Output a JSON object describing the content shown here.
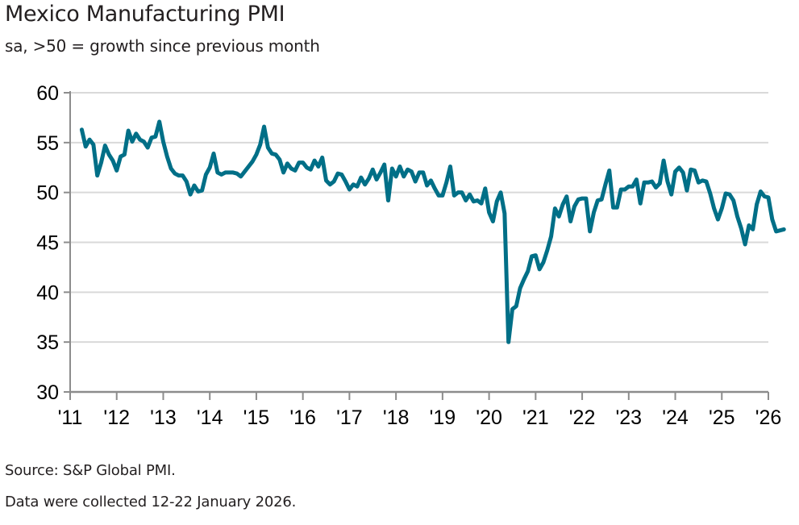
{
  "chart_data": {
    "type": "line",
    "title": "Mexico Manufacturing PMI",
    "subtitle": "sa, >50 = growth since previous month",
    "xlabel": "",
    "ylabel": "",
    "ylim": [
      30,
      60
    ],
    "yticks": [
      60,
      55,
      50,
      45,
      40,
      35,
      30
    ],
    "xlim": [
      "2011-01",
      "2026-01"
    ],
    "xticks": [
      "'11",
      "'12",
      "'13",
      "'14",
      "'15",
      "'16",
      "'17",
      "'18",
      "'19",
      "'20",
      "'21",
      "'22",
      "'23",
      "'24",
      "'25",
      "'26"
    ],
    "grid": "horizontal",
    "legend": "none",
    "series": [
      {
        "name": "Mexico Manufacturing PMI",
        "color": "#006f87",
        "start": "2011-04",
        "frequency": "monthly",
        "values": [
          56.3,
          54.6,
          55.3,
          54.8,
          51.7,
          53.0,
          54.7,
          53.8,
          53.2,
          52.2,
          53.6,
          53.8,
          56.2,
          55.1,
          55.9,
          55.3,
          55.1,
          54.5,
          55.5,
          55.6,
          57.1,
          55.1,
          53.6,
          52.4,
          51.9,
          51.7,
          51.7,
          51.1,
          49.8,
          50.7,
          50.1,
          50.2,
          51.8,
          52.5,
          53.9,
          52.0,
          51.8,
          52.0,
          52.0,
          52.0,
          51.9,
          51.6,
          52.1,
          52.6,
          53.1,
          53.8,
          54.8,
          56.6,
          54.5,
          53.9,
          53.8,
          53.3,
          52.0,
          52.9,
          52.4,
          52.2,
          53.0,
          53.0,
          52.5,
          52.3,
          53.2,
          52.6,
          53.5,
          51.2,
          50.8,
          51.1,
          51.9,
          51.8,
          51.1,
          50.3,
          50.8,
          50.6,
          51.5,
          50.8,
          51.4,
          52.3,
          51.3,
          52.0,
          52.8,
          49.2,
          52.4,
          51.6,
          52.6,
          51.6,
          52.3,
          52.1,
          51.1,
          52.0,
          52.0,
          50.7,
          51.2,
          50.4,
          49.7,
          49.7,
          51.0,
          52.6,
          49.7,
          50.0,
          50.0,
          49.2,
          49.8,
          49.1,
          49.2,
          48.9,
          50.4,
          48.0,
          47.1,
          49.1,
          50.0,
          47.9,
          35.0,
          38.3,
          38.6,
          40.4,
          41.3,
          42.1,
          43.6,
          43.7,
          42.3,
          43.0,
          44.2,
          45.6,
          48.4,
          47.6,
          48.8,
          49.6,
          47.1,
          48.6,
          49.3,
          49.4,
          49.4,
          46.1,
          48.0,
          49.2,
          49.3,
          50.8,
          52.2,
          48.5,
          48.5,
          50.3,
          50.3,
          50.6,
          50.6,
          51.3,
          48.9,
          51.0,
          51.0,
          51.1,
          50.5,
          50.9,
          53.2,
          51.1,
          49.8,
          52.1,
          52.5,
          52.0,
          50.2,
          52.3,
          52.2,
          51.0,
          51.2,
          51.1,
          49.9,
          48.4,
          47.3,
          48.4,
          49.9,
          49.8,
          49.2,
          47.6,
          46.4,
          44.8,
          46.7,
          46.3,
          48.8,
          50.1,
          49.6,
          49.5,
          47.3,
          46.1,
          46.2,
          46.3
        ]
      }
    ]
  },
  "footer": {
    "source": "Source: S&P Global PMI.",
    "collection": "Data were collected 12-22 January 2026."
  }
}
